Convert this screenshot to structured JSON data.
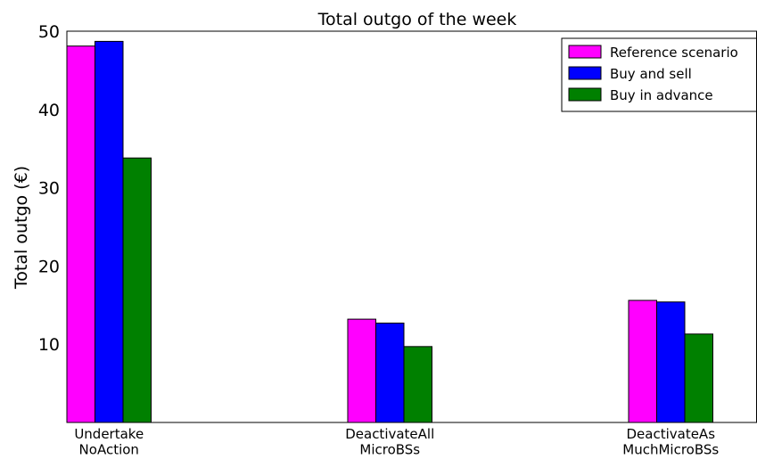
{
  "chart_data": {
    "type": "bar",
    "title": "Total outgo of the week",
    "ylabel": "Total outgo (€)",
    "categories": [
      "Undertake\nNoAction",
      "DeactivateAll\nMicroBSs",
      "DeactivateAs\nMuchMicroBSs"
    ],
    "series": [
      {
        "name": "Reference scenario",
        "color": "#ff00ff",
        "values": [
          48.1,
          13.2,
          15.6
        ]
      },
      {
        "name": "Buy and sell",
        "color": "#0000ff",
        "values": [
          48.7,
          12.7,
          15.4
        ]
      },
      {
        "name": "Buy in advance",
        "color": "#008000",
        "values": [
          33.8,
          9.7,
          11.3
        ]
      }
    ],
    "ylim": [
      0,
      50
    ],
    "yticks": [
      10,
      20,
      30,
      40,
      50
    ],
    "legend": "upper right"
  }
}
